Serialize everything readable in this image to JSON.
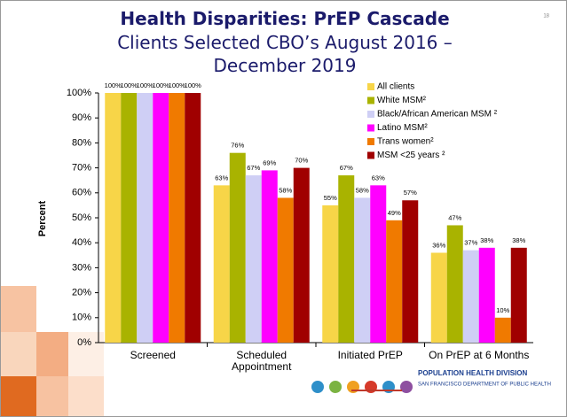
{
  "page_number": "18",
  "chart_data": {
    "type": "bar",
    "title": "Health Disparities: PrEP Cascade",
    "subtitle": "Clients Selected CBO’s August 2016 – December 2019",
    "y_label": "Percent",
    "categories": [
      "Screened",
      "Scheduled Appointment",
      "Initiated PrEP",
      "On PrEP at 6 Months"
    ],
    "series": [
      {
        "name": "All clients",
        "color": "#f7d548",
        "values": [
          100,
          63,
          55,
          36
        ],
        "value_labels": [
          "100%",
          "63%",
          "55%",
          "36%"
        ]
      },
      {
        "name": "White MSM²",
        "color": "#a9b300",
        "values": [
          100,
          76,
          67,
          47
        ],
        "value_labels": [
          "100%",
          "76%",
          "67%",
          "47%"
        ]
      },
      {
        "name": "Black/African American MSM ²",
        "color": "#cfcff5",
        "values": [
          100,
          67,
          58,
          37
        ],
        "value_labels": [
          "100%",
          "67%",
          "58%",
          "37%"
        ]
      },
      {
        "name": "Latino MSM²",
        "color": "#ff00ff",
        "values": [
          100,
          69,
          63,
          38
        ],
        "value_labels": [
          "100%",
          "69%",
          "63%",
          "38%"
        ]
      },
      {
        "name": "Trans women²",
        "color": "#f07a00",
        "values": [
          100,
          58,
          49,
          10
        ],
        "value_labels": [
          "100%",
          "58%",
          "49%",
          "10%"
        ]
      },
      {
        "name": "MSM <25 years ²",
        "color": "#a00000",
        "values": [
          100,
          70,
          57,
          38
        ],
        "value_labels": [
          "100%",
          "70%",
          "57%",
          "38%"
        ]
      }
    ],
    "ylim": [
      0,
      100
    ],
    "yticks": [
      {
        "value": 0,
        "label": "0%"
      },
      {
        "value": 10,
        "label": "10%"
      },
      {
        "value": 20,
        "label": "20%"
      },
      {
        "value": 30,
        "label": "30%"
      },
      {
        "value": 40,
        "label": "40%"
      },
      {
        "value": 50,
        "label": "50%"
      },
      {
        "value": 60,
        "label": "60%"
      },
      {
        "value": 70,
        "label": "70%"
      },
      {
        "value": 80,
        "label": "80%"
      },
      {
        "value": 90,
        "label": "90%"
      },
      {
        "value": 100,
        "label": "100%"
      }
    ]
  },
  "logo": {
    "title": "POPULATION HEALTH DIVISION",
    "subtitle": "SAN FRANCISCO DEPARTMENT OF PUBLIC HEALTH"
  }
}
